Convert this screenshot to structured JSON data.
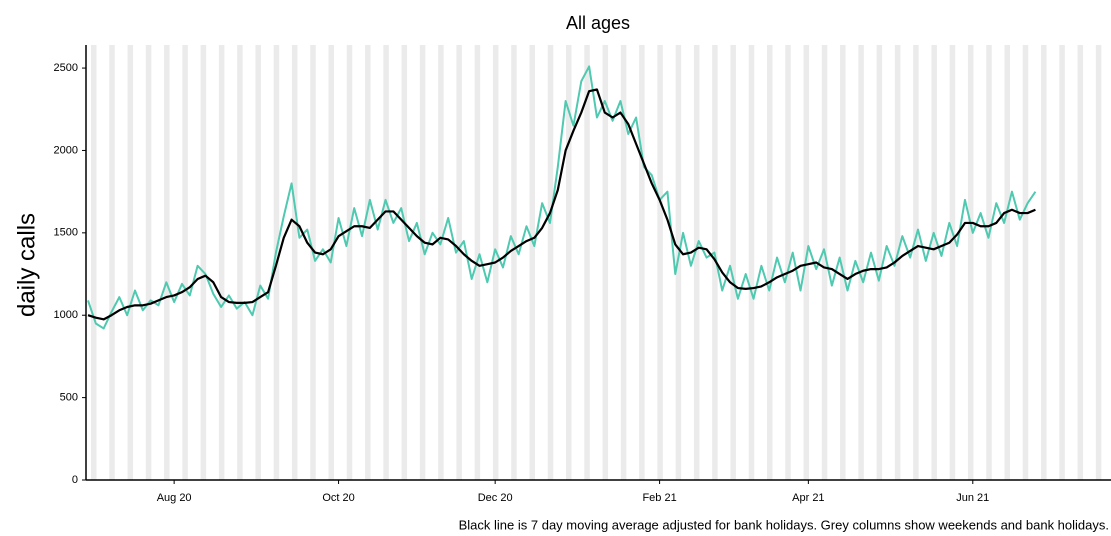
{
  "chart_data": {
    "type": "line",
    "title": "All ages",
    "y_label": "daily calls",
    "caption": "Black line is 7 day moving average adjusted for bank holidays. Grey columns show weekends and bank holidays.",
    "categories": [
      null,
      null,
      null,
      null,
      null,
      null,
      null,
      null,
      null,
      null,
      null,
      "Aug 20",
      null,
      null,
      null,
      null,
      null,
      null,
      null,
      null,
      null,
      null,
      null,
      null,
      null,
      null,
      null,
      null,
      null,
      null,
      null,
      null,
      "Oct 20",
      null,
      null,
      null,
      null,
      null,
      null,
      null,
      null,
      null,
      null,
      null,
      null,
      null,
      null,
      null,
      null,
      null,
      null,
      null,
      "Dec 20",
      null,
      null,
      null,
      null,
      null,
      null,
      null,
      null,
      null,
      null,
      null,
      null,
      null,
      null,
      null,
      null,
      null,
      null,
      null,
      null,
      "Feb 21",
      null,
      null,
      null,
      null,
      null,
      null,
      null,
      null,
      null,
      null,
      null,
      null,
      null,
      null,
      null,
      null,
      null,
      null,
      "Apr 21",
      null,
      null,
      null,
      null,
      null,
      null,
      null,
      null,
      null,
      null,
      null,
      null,
      null,
      null,
      null,
      null,
      null,
      null,
      null,
      null,
      "Jun 21",
      null,
      null,
      null,
      null,
      null,
      null,
      null,
      null,
      null,
      null,
      null,
      null,
      null,
      null,
      null,
      null,
      null
    ],
    "series": [
      {
        "color": "#4fc9b0",
        "values": [
          1090,
          950,
          920,
          1020,
          1110,
          1000,
          1150,
          1030,
          1090,
          1060,
          1200,
          1080,
          1190,
          1120,
          1300,
          1250,
          1130,
          1050,
          1120,
          1040,
          1080,
          1000,
          1180,
          1100,
          1380,
          1600,
          1800,
          1470,
          1520,
          1330,
          1400,
          1320,
          1590,
          1420,
          1650,
          1480,
          1700,
          1520,
          1700,
          1560,
          1650,
          1450,
          1560,
          1370,
          1500,
          1430,
          1590,
          1380,
          1450,
          1220,
          1370,
          1200,
          1400,
          1290,
          1480,
          1370,
          1540,
          1420,
          1680,
          1560,
          1900,
          2300,
          2150,
          2420,
          2510,
          2200,
          2300,
          2180,
          2300,
          2100,
          2200,
          1900,
          1850,
          1700,
          1750,
          1250,
          1500,
          1300,
          1450,
          1350,
          1380,
          1150,
          1300,
          1100,
          1250,
          1100,
          1300,
          1150,
          1350,
          1200,
          1380,
          1150,
          1420,
          1280,
          1400,
          1180,
          1350,
          1150,
          1330,
          1200,
          1380,
          1210,
          1420,
          1300,
          1480,
          1350,
          1520,
          1330,
          1500,
          1360,
          1560,
          1420,
          1700,
          1500,
          1620,
          1470,
          1680,
          1560,
          1750,
          1580,
          1680,
          1750,
          null,
          null,
          null,
          null,
          null,
          null,
          null,
          null,
          null
        ]
      },
      {
        "color": "#000000",
        "values": [
          1000,
          985,
          975,
          1000,
          1030,
          1050,
          1060,
          1060,
          1070,
          1090,
          1110,
          1120,
          1140,
          1170,
          1220,
          1240,
          1200,
          1110,
          1080,
          1075,
          1075,
          1080,
          1110,
          1140,
          1300,
          1470,
          1580,
          1540,
          1440,
          1380,
          1370,
          1400,
          1480,
          1510,
          1540,
          1540,
          1530,
          1580,
          1630,
          1630,
          1580,
          1530,
          1480,
          1440,
          1430,
          1470,
          1460,
          1420,
          1370,
          1330,
          1300,
          1310,
          1320,
          1350,
          1390,
          1420,
          1450,
          1470,
          1530,
          1620,
          1760,
          2000,
          2120,
          2230,
          2360,
          2370,
          2230,
          2200,
          2230,
          2160,
          2040,
          1920,
          1800,
          1700,
          1580,
          1430,
          1370,
          1380,
          1410,
          1400,
          1340,
          1260,
          1200,
          1165,
          1160,
          1165,
          1175,
          1200,
          1230,
          1250,
          1270,
          1300,
          1310,
          1320,
          1290,
          1280,
          1250,
          1220,
          1250,
          1270,
          1280,
          1280,
          1290,
          1320,
          1360,
          1390,
          1420,
          1410,
          1400,
          1420,
          1440,
          1490,
          1560,
          1560,
          1540,
          1540,
          1560,
          1620,
          1640,
          1620,
          1620,
          1640,
          null,
          null,
          null,
          null,
          null,
          null,
          null,
          null,
          null
        ]
      }
    ],
    "ylim": [
      0,
      2640
    ],
    "yticks": [
      0,
      500,
      1000,
      1500,
      2000,
      2500
    ],
    "grid": false
  }
}
